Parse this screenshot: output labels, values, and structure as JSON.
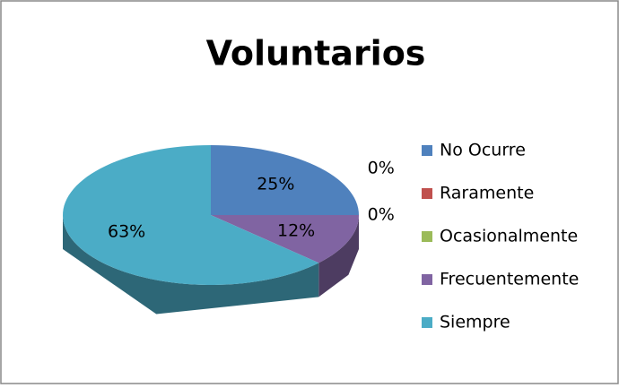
{
  "chart_data": {
    "type": "pie",
    "title": "Voluntarios",
    "categories": [
      "No Ocurre",
      "Raramente",
      "Ocasionalmente",
      "Frecuentemente",
      "Siempre"
    ],
    "values": [
      25,
      0,
      0,
      12,
      63
    ],
    "value_labels": [
      "25%",
      "0%",
      "0%",
      "12%",
      "63%"
    ],
    "colors": [
      "#4f81bd",
      "#c0504d",
      "#9bbb59",
      "#8064a2",
      "#4bacc6"
    ],
    "legend": "right"
  }
}
